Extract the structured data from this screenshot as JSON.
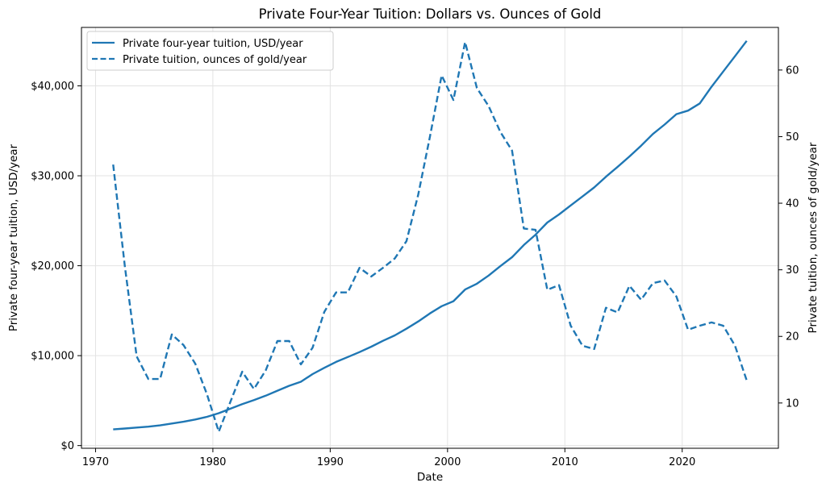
{
  "chart_data": {
    "type": "line",
    "title": "Private Four-Year Tuition: Dollars vs. Ounces of Gold",
    "xlabel": "Date",
    "ylabel_left": "Private four-year tuition, USD/year",
    "ylabel_right": "Private tuition, ounces of gold/year",
    "xlim": [
      1968.8,
      2028.2
    ],
    "ylim_left": [
      -300,
      46500
    ],
    "ylim_right": [
      3.2,
      66.4
    ],
    "x_ticks": [
      1970,
      1980,
      1990,
      2000,
      2010,
      2020
    ],
    "x_tick_labels": [
      "1970",
      "1980",
      "1990",
      "2000",
      "2010",
      "2020"
    ],
    "y_left_ticks": [
      0,
      10000,
      20000,
      30000,
      40000
    ],
    "y_left_tick_labels": [
      "$0",
      "$10,000",
      "$20,000",
      "$30,000",
      "$40,000"
    ],
    "y_right_ticks": [
      10,
      20,
      30,
      40,
      50,
      60
    ],
    "y_right_tick_labels": [
      "10",
      "20",
      "30",
      "40",
      "50",
      "60"
    ],
    "grid": true,
    "legend_position": "top-left",
    "color": "#1f77b4",
    "series": [
      {
        "name": "Private four-year tuition, USD/year",
        "axis": "left",
        "style": "solid",
        "x": [
          1971.5,
          1972.5,
          1973.5,
          1974.5,
          1975.5,
          1976.5,
          1977.5,
          1978.5,
          1979.5,
          1980.5,
          1981.5,
          1982.5,
          1983.5,
          1984.5,
          1985.5,
          1986.5,
          1987.5,
          1988.5,
          1989.5,
          1990.5,
          1991.5,
          1992.5,
          1993.5,
          1994.5,
          1995.5,
          1996.5,
          1997.5,
          1998.5,
          1999.5,
          2000.5,
          2001.5,
          2002.5,
          2003.5,
          2004.5,
          2005.5,
          2006.5,
          2007.5,
          2008.5,
          2009.5,
          2010.5,
          2011.5,
          2012.5,
          2013.5,
          2014.5,
          2015.5,
          2016.5,
          2017.5,
          2018.5,
          2019.5,
          2020.5,
          2021.5,
          2022.5,
          2023.5,
          2024.5,
          2025.5
        ],
        "values": [
          1800,
          1900,
          2000,
          2100,
          2250,
          2450,
          2650,
          2900,
          3200,
          3600,
          4100,
          4600,
          5050,
          5550,
          6100,
          6650,
          7100,
          7950,
          8650,
          9300,
          9850,
          10400,
          11000,
          11650,
          12250,
          13000,
          13800,
          14700,
          15500,
          16050,
          17350,
          18000,
          18900,
          19950,
          20950,
          22300,
          23450,
          24800,
          25700,
          26700,
          27700,
          28700,
          29900,
          31000,
          32150,
          33350,
          34650,
          35700,
          36850,
          37250,
          38050,
          39900,
          41600,
          43300,
          45000
        ]
      },
      {
        "name": "Private tuition, ounces of gold/year",
        "axis": "right",
        "style": "dashed",
        "x": [
          1971.5,
          1972.5,
          1973.5,
          1974.5,
          1975.5,
          1976.5,
          1977.5,
          1978.5,
          1979.5,
          1980.5,
          1981.5,
          1982.5,
          1983.5,
          1984.5,
          1985.5,
          1986.5,
          1987.5,
          1988.5,
          1989.5,
          1990.5,
          1991.5,
          1992.5,
          1993.5,
          1994.5,
          1995.5,
          1996.5,
          1997.5,
          1998.5,
          1999.5,
          2000.5,
          2001.5,
          2002.5,
          2003.5,
          2004.5,
          2005.5,
          2006.5,
          2007.5,
          2008.5,
          2009.5,
          2010.5,
          2011.5,
          2012.5,
          2013.5,
          2014.5,
          2015.5,
          2016.5,
          2017.5,
          2018.5,
          2019.5,
          2020.5,
          2021.5,
          2022.5,
          2023.5,
          2024.5,
          2025.5
        ],
        "values": [
          45.8,
          30.5,
          17.0,
          13.6,
          13.6,
          20.3,
          18.7,
          15.9,
          11.3,
          5.7,
          10.2,
          14.7,
          12.1,
          14.9,
          19.3,
          19.3,
          15.8,
          18.3,
          23.7,
          26.6,
          26.6,
          30.3,
          29.0,
          30.3,
          31.7,
          34.3,
          41.3,
          50.0,
          59.2,
          55.5,
          64.2,
          57.3,
          54.6,
          50.7,
          47.9,
          36.2,
          36.0,
          27.0,
          27.7,
          21.6,
          18.6,
          18.1,
          24.3,
          23.6,
          27.6,
          25.5,
          28.0,
          28.4,
          26.0,
          21.0,
          21.6,
          22.1,
          21.6,
          18.6,
          13.4
        ]
      }
    ]
  }
}
